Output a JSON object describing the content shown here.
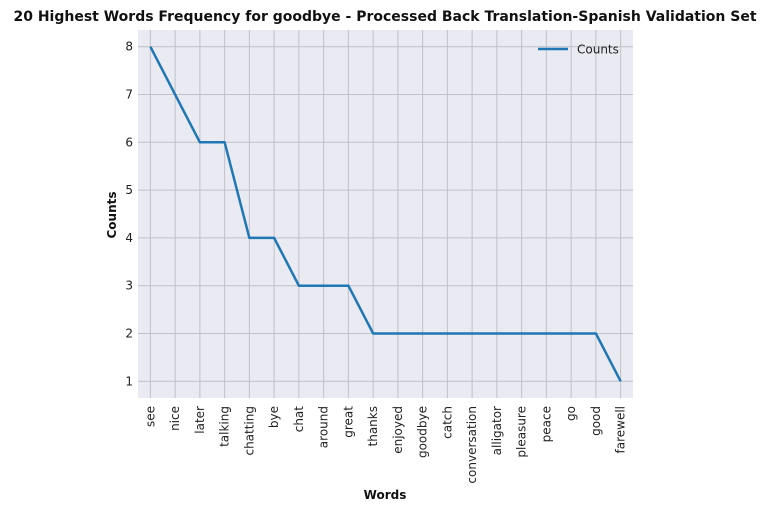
{
  "chart_data": {
    "type": "line",
    "title": "20 Highest Words Frequency for goodbye - Processed Back Translation-Spanish Validation Set",
    "xlabel": "Words",
    "ylabel": "Counts",
    "categories": [
      "see",
      "nice",
      "later",
      "talking",
      "chatting",
      "bye",
      "chat",
      "around",
      "great",
      "thanks",
      "enjoyed",
      "goodbye",
      "catch",
      "conversation",
      "alligator",
      "pleasure",
      "peace",
      "go",
      "good",
      "farewell"
    ],
    "series": [
      {
        "name": "Counts",
        "values": [
          8,
          7,
          6,
          6,
          4,
          4,
          3,
          3,
          3,
          2,
          2,
          2,
          2,
          2,
          2,
          2,
          2,
          2,
          2,
          1
        ],
        "color": "#1f77b4"
      }
    ],
    "yticks": [
      1,
      2,
      3,
      4,
      5,
      6,
      7,
      8
    ],
    "ylim": [
      0.65,
      8.35
    ],
    "grid": true,
    "legend_position": "top-right",
    "background_color": "#eaeaf2",
    "grid_color": "#c0c0c8"
  }
}
